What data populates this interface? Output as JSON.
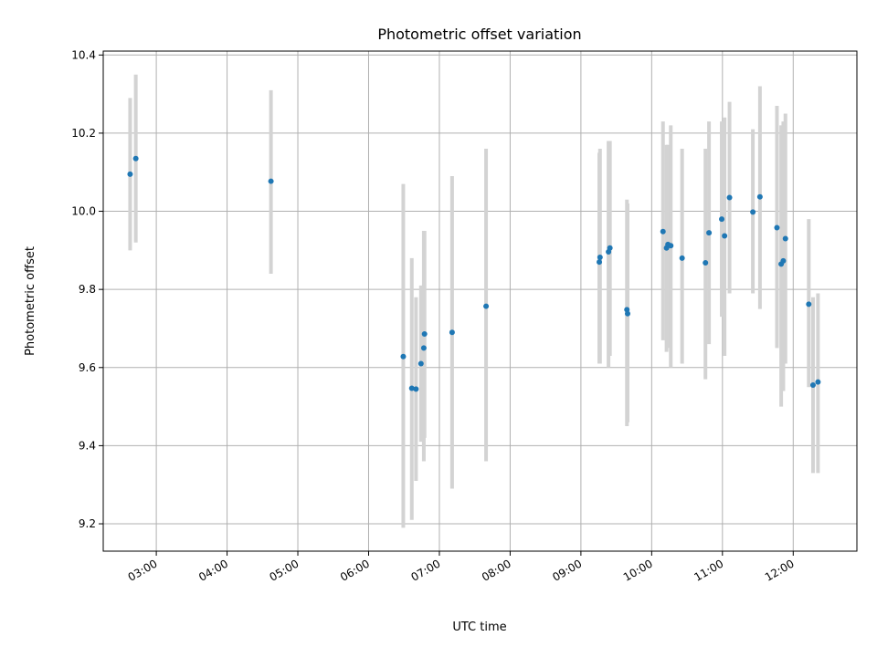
{
  "chart_data": {
    "type": "scatter",
    "title": "Photometric offset variation",
    "xlabel": "UTC time",
    "ylabel": "Photometric offset",
    "x_unit": "hours UTC",
    "xlim": [
      2.25,
      12.9
    ],
    "ylim": [
      9.13,
      10.41
    ],
    "x_ticks": [
      3,
      4,
      5,
      6,
      7,
      8,
      9,
      10,
      11,
      12
    ],
    "x_tick_labels": [
      "03:00",
      "04:00",
      "05:00",
      "06:00",
      "07:00",
      "08:00",
      "09:00",
      "10:00",
      "11:00",
      "12:00"
    ],
    "y_ticks": [
      9.2,
      9.4,
      9.6,
      9.8,
      10.0,
      10.2,
      10.4
    ],
    "y_tick_labels": [
      "9.2",
      "9.4",
      "9.6",
      "9.8",
      "10.0",
      "10.2",
      "10.4"
    ],
    "grid": true,
    "marker_color": "#1f77b4",
    "errorbar_color": "#d3d3d3",
    "points": [
      {
        "x": 2.63,
        "y": 10.095,
        "lo": 9.9,
        "hi": 10.29
      },
      {
        "x": 2.71,
        "y": 10.135,
        "lo": 9.92,
        "hi": 10.35
      },
      {
        "x": 4.62,
        "y": 10.077,
        "lo": 9.84,
        "hi": 10.31
      },
      {
        "x": 6.49,
        "y": 9.628,
        "lo": 9.19,
        "hi": 10.07
      },
      {
        "x": 6.61,
        "y": 9.547,
        "lo": 9.21,
        "hi": 9.88
      },
      {
        "x": 6.67,
        "y": 9.545,
        "lo": 9.31,
        "hi": 9.78
      },
      {
        "x": 6.74,
        "y": 9.61,
        "lo": 9.41,
        "hi": 9.81
      },
      {
        "x": 6.78,
        "y": 9.65,
        "lo": 9.36,
        "hi": 9.95
      },
      {
        "x": 6.79,
        "y": 9.686,
        "lo": 9.42,
        "hi": 9.95
      },
      {
        "x": 7.18,
        "y": 9.69,
        "lo": 9.29,
        "hi": 10.09
      },
      {
        "x": 7.66,
        "y": 9.757,
        "lo": 9.36,
        "hi": 10.16
      },
      {
        "x": 9.26,
        "y": 9.87,
        "lo": 9.61,
        "hi": 10.15
      },
      {
        "x": 9.27,
        "y": 9.882,
        "lo": 9.61,
        "hi": 10.16
      },
      {
        "x": 9.39,
        "y": 9.896,
        "lo": 9.6,
        "hi": 10.18
      },
      {
        "x": 9.41,
        "y": 9.906,
        "lo": 9.63,
        "hi": 10.18
      },
      {
        "x": 9.65,
        "y": 9.748,
        "lo": 9.45,
        "hi": 10.03
      },
      {
        "x": 9.66,
        "y": 9.738,
        "lo": 9.46,
        "hi": 10.02
      },
      {
        "x": 10.16,
        "y": 9.948,
        "lo": 9.67,
        "hi": 10.23
      },
      {
        "x": 10.21,
        "y": 9.906,
        "lo": 9.64,
        "hi": 10.17
      },
      {
        "x": 10.23,
        "y": 9.915,
        "lo": 9.65,
        "hi": 10.17
      },
      {
        "x": 10.27,
        "y": 9.912,
        "lo": 9.6,
        "hi": 10.22
      },
      {
        "x": 10.43,
        "y": 9.88,
        "lo": 9.61,
        "hi": 10.16
      },
      {
        "x": 10.76,
        "y": 9.868,
        "lo": 9.57,
        "hi": 10.16
      },
      {
        "x": 10.81,
        "y": 9.945,
        "lo": 9.66,
        "hi": 10.23
      },
      {
        "x": 10.99,
        "y": 9.98,
        "lo": 9.73,
        "hi": 10.23
      },
      {
        "x": 11.03,
        "y": 9.937,
        "lo": 9.63,
        "hi": 10.24
      },
      {
        "x": 11.1,
        "y": 10.035,
        "lo": 9.79,
        "hi": 10.28
      },
      {
        "x": 11.43,
        "y": 9.998,
        "lo": 9.79,
        "hi": 10.21
      },
      {
        "x": 11.53,
        "y": 10.037,
        "lo": 9.75,
        "hi": 10.32
      },
      {
        "x": 11.77,
        "y": 9.958,
        "lo": 9.65,
        "hi": 10.27
      },
      {
        "x": 11.83,
        "y": 9.865,
        "lo": 9.5,
        "hi": 10.22
      },
      {
        "x": 11.86,
        "y": 9.873,
        "lo": 9.54,
        "hi": 10.23
      },
      {
        "x": 11.89,
        "y": 9.93,
        "lo": 9.61,
        "hi": 10.25
      },
      {
        "x": 12.22,
        "y": 9.762,
        "lo": 9.55,
        "hi": 9.98
      },
      {
        "x": 12.28,
        "y": 9.555,
        "lo": 9.33,
        "hi": 9.78
      },
      {
        "x": 12.35,
        "y": 9.563,
        "lo": 9.33,
        "hi": 9.79
      }
    ]
  }
}
